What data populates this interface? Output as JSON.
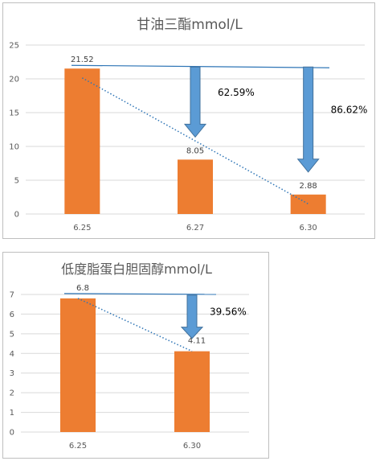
{
  "colors": {
    "bar": "#ED7D31",
    "arrow_fill": "#5B9BD5",
    "arrow_stroke": "#41719C",
    "trend": "#2E75B6",
    "gridline": "#D9D9D9"
  },
  "chart_data": [
    {
      "type": "bar",
      "title": "甘油三酯mmol/L",
      "categories": [
        "6.25",
        "6.27",
        "6.30"
      ],
      "values": [
        21.52,
        8.05,
        2.88
      ],
      "data_labels": [
        "21.52",
        "8.05",
        "2.88"
      ],
      "ylim": [
        0,
        25
      ],
      "yticks": [
        "0",
        "5",
        "10",
        "15",
        "20",
        "25"
      ],
      "grid": true,
      "trendline": "linear dotted",
      "reference_line": "horizontal at first value",
      "annotations": [
        {
          "type": "down-arrow",
          "category_index": 1,
          "text": "62.59%"
        },
        {
          "type": "down-arrow",
          "category_index": 2,
          "text": "86.62%"
        }
      ]
    },
    {
      "type": "bar",
      "title": "低度脂蛋白胆固醇mmol/L",
      "categories": [
        "6.25",
        "6.30"
      ],
      "values": [
        6.8,
        4.11
      ],
      "data_labels": [
        "6.8",
        "4.11"
      ],
      "ylim": [
        0,
        7
      ],
      "yticks": [
        "0",
        "1",
        "2",
        "3",
        "4",
        "5",
        "6",
        "7"
      ],
      "grid": true,
      "trendline": "linear dotted",
      "reference_line": "horizontal at first value",
      "annotations": [
        {
          "type": "down-arrow",
          "category_index": 1,
          "text": "39.56%"
        }
      ]
    }
  ]
}
